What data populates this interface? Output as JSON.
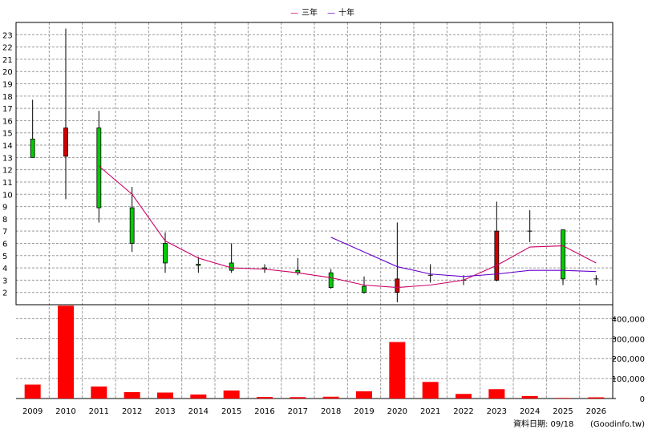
{
  "chart_data": {
    "type": "candlestick-with-volume",
    "legend": {
      "placement": "top-center",
      "items": [
        {
          "symbol": "—",
          "label": "三年",
          "color": "#cc0066"
        },
        {
          "symbol": "—",
          "label": "十年",
          "color": "#6600cc"
        }
      ]
    },
    "x_categories": [
      "2009",
      "2010",
      "2011",
      "2012",
      "2013",
      "2014",
      "2015",
      "2016",
      "2017",
      "2018",
      "2019",
      "2020",
      "2021",
      "2022",
      "2023",
      "2024",
      "2025",
      "2026"
    ],
    "price_axis": {
      "range": [
        1,
        24
      ],
      "tick_labels": [
        "2",
        "3",
        "4",
        "5",
        "6",
        "7",
        "8",
        "9",
        "10",
        "11",
        "12",
        "13",
        "14",
        "15",
        "16",
        "17",
        "18",
        "19",
        "20",
        "21",
        "22",
        "23"
      ]
    },
    "volume_axis": {
      "range": [
        0,
        470000
      ],
      "tick_labels": [
        "0",
        "100,000",
        "200,000",
        "300,000",
        "400,000"
      ]
    },
    "candles": [
      {
        "year": "2009",
        "open": 13.0,
        "close": 14.5,
        "high": 17.7,
        "low": 13.0
      },
      {
        "year": "2010",
        "open": 15.4,
        "close": 13.1,
        "high": 23.5,
        "low": 9.6
      },
      {
        "year": "2011",
        "open": 8.9,
        "close": 15.4,
        "high": 16.8,
        "low": 7.7
      },
      {
        "year": "2012",
        "open": 6.0,
        "close": 8.9,
        "high": 10.6,
        "low": 5.3
      },
      {
        "year": "2013",
        "open": 4.4,
        "close": 6.0,
        "high": 6.9,
        "low": 3.6
      },
      {
        "year": "2014",
        "open": 4.2,
        "close": 4.3,
        "high": 4.9,
        "low": 3.6
      },
      {
        "year": "2015",
        "open": 3.8,
        "close": 4.4,
        "high": 6.0,
        "low": 3.6
      },
      {
        "year": "2016",
        "open": 3.9,
        "close": 4.0,
        "high": 4.3,
        "low": 3.6
      },
      {
        "year": "2017",
        "open": 3.6,
        "close": 3.8,
        "high": 4.8,
        "low": 3.4
      },
      {
        "year": "2018",
        "open": 2.4,
        "close": 3.6,
        "high": 3.9,
        "low": 2.3
      },
      {
        "year": "2019",
        "open": 2.0,
        "close": 2.5,
        "high": 3.3,
        "low": 1.9
      },
      {
        "year": "2020",
        "open": 3.1,
        "close": 2.0,
        "high": 7.7,
        "low": 1.2
      },
      {
        "year": "2021",
        "open": 3.4,
        "close": 3.4,
        "high": 4.3,
        "low": 2.8
      },
      {
        "year": "2022",
        "open": 3.0,
        "close": 3.0,
        "high": 3.4,
        "low": 2.6
      },
      {
        "year": "2023",
        "open": 7.0,
        "close": 3.0,
        "high": 9.4,
        "low": 2.9
      },
      {
        "year": "2024",
        "open": 7.0,
        "close": 7.0,
        "high": 8.7,
        "low": 6.1
      },
      {
        "year": "2025",
        "open": 3.1,
        "close": 7.1,
        "high": 7.1,
        "low": 2.6
      },
      {
        "year": "2026",
        "open": 3.1,
        "close": 3.1,
        "high": 3.4,
        "low": 2.6
      }
    ],
    "series": [
      {
        "name": "三年",
        "color": "#cc0066",
        "points": [
          {
            "x": "2011",
            "y": 12.3
          },
          {
            "x": "2012",
            "y": 10.0
          },
          {
            "x": "2013",
            "y": 6.2
          },
          {
            "x": "2014",
            "y": 4.8
          },
          {
            "x": "2015",
            "y": 4.0
          },
          {
            "x": "2016",
            "y": 3.9
          },
          {
            "x": "2017",
            "y": 3.6
          },
          {
            "x": "2018",
            "y": 3.2
          },
          {
            "x": "2019",
            "y": 2.6
          },
          {
            "x": "2020",
            "y": 2.4
          },
          {
            "x": "2021",
            "y": 2.6
          },
          {
            "x": "2022",
            "y": 3.0
          },
          {
            "x": "2023",
            "y": 4.2
          },
          {
            "x": "2024",
            "y": 5.7
          },
          {
            "x": "2025",
            "y": 5.8
          },
          {
            "x": "2026",
            "y": 4.4
          }
        ]
      },
      {
        "name": "十年",
        "color": "#6600cc",
        "points": [
          {
            "x": "2018",
            "y": 6.5
          },
          {
            "x": "2019",
            "y": 5.3
          },
          {
            "x": "2020",
            "y": 4.1
          },
          {
            "x": "2021",
            "y": 3.5
          },
          {
            "x": "2022",
            "y": 3.3
          },
          {
            "x": "2023",
            "y": 3.5
          },
          {
            "x": "2024",
            "y": 3.8
          },
          {
            "x": "2025",
            "y": 3.8
          },
          {
            "x": "2026",
            "y": 3.7
          }
        ]
      }
    ],
    "volume": [
      {
        "year": "2009",
        "value": 70000
      },
      {
        "year": "2010",
        "value": 465000
      },
      {
        "year": "2011",
        "value": 60000
      },
      {
        "year": "2012",
        "value": 32000
      },
      {
        "year": "2013",
        "value": 30000
      },
      {
        "year": "2014",
        "value": 20000
      },
      {
        "year": "2015",
        "value": 40000
      },
      {
        "year": "2016",
        "value": 8000
      },
      {
        "year": "2017",
        "value": 7000
      },
      {
        "year": "2018",
        "value": 9000
      },
      {
        "year": "2019",
        "value": 36000
      },
      {
        "year": "2020",
        "value": 283000
      },
      {
        "year": "2021",
        "value": 83000
      },
      {
        "year": "2022",
        "value": 23000
      },
      {
        "year": "2023",
        "value": 47000
      },
      {
        "year": "2024",
        "value": 12000
      },
      {
        "year": "2025",
        "value": 3000
      },
      {
        "year": "2026",
        "value": 6000
      }
    ],
    "colors": {
      "up": "#00cc00",
      "down": "#cc0000",
      "volume": "#ff0000",
      "grid": "#9a9a9a"
    },
    "grid": true
  },
  "footer": {
    "date_text": "資料日期: 09/18",
    "source_text": "(Goodinfo.tw)"
  }
}
